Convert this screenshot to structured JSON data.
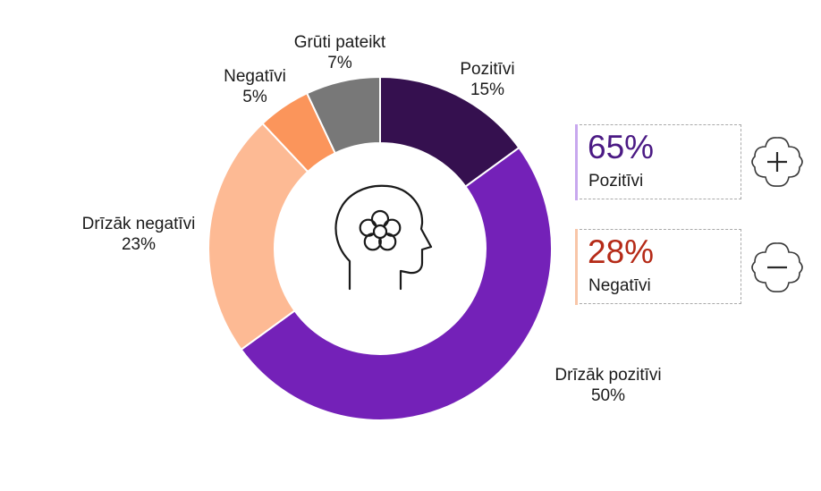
{
  "chart_data": {
    "type": "pie",
    "variant": "donut",
    "title": "",
    "categories": [
      "Pozitīvi",
      "Drīzāk pozitīvi",
      "Drīzāk negatīvi",
      "Negatīvi",
      "Grūti pateikt"
    ],
    "values": [
      15,
      50,
      23,
      5,
      7
    ],
    "value_labels": [
      "15%",
      "50%",
      "23%",
      "5%",
      "7%"
    ],
    "colors": [
      "#35104f",
      "#7421b8",
      "#fdba94",
      "#fb955b",
      "#787878"
    ],
    "start_angle_deg": 0,
    "direction": "clockwise",
    "center_icon": "head-flower-icon"
  },
  "summary": {
    "positive": {
      "value": "65%",
      "label": "Pozitīvi",
      "value_color": "#4b1a84",
      "bar_color": "#c8a8ee",
      "icon": "plus-cloud-icon"
    },
    "negative": {
      "value": "28%",
      "label": "Negatīvi",
      "value_color": "#b52a17",
      "bar_color": "#f8c6a8",
      "icon": "minus-cloud-icon"
    }
  }
}
